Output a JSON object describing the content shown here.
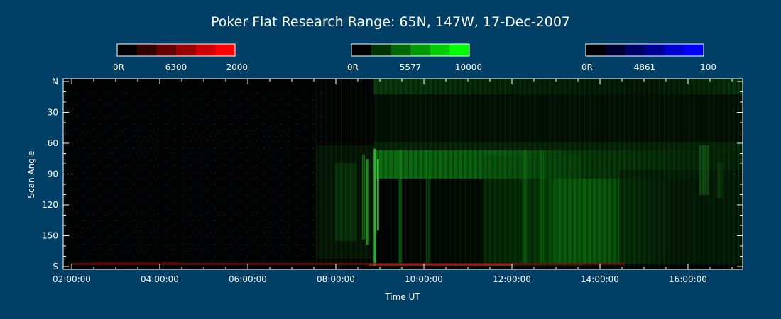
{
  "chart_data": {
    "type": "heatmap",
    "title": "Poker Flat Research Range: 65N, 147W, 17-Dec-2007",
    "xlabel": "Time UT",
    "ylabel": "Scan Angle",
    "x_ticks": [
      "02:00:00",
      "04:00:00",
      "06:00:00",
      "08:00:00",
      "10:00:00",
      "12:00:00",
      "14:00:00",
      "16:00:00"
    ],
    "y_ticks": [
      "N",
      "30",
      "60",
      "90",
      "120",
      "150",
      "S"
    ],
    "y_tick_values": [
      0,
      30,
      60,
      90,
      120,
      150,
      180
    ],
    "colorbars": [
      {
        "name": "6300",
        "min_label": "0R",
        "mid_label": "6300",
        "max_label": "2000",
        "colors": [
          "#000000",
          "#330000",
          "#660000",
          "#990000",
          "#cc0000",
          "#ff0000"
        ]
      },
      {
        "name": "5577",
        "min_label": "0R",
        "mid_label": "5577",
        "max_label": "10000",
        "colors": [
          "#000000",
          "#003300",
          "#006600",
          "#009900",
          "#00cc00",
          "#00ff00"
        ]
      },
      {
        "name": "4861",
        "min_label": "0R",
        "mid_label": "4861",
        "max_label": "100",
        "colors": [
          "#000000",
          "#000033",
          "#000066",
          "#000099",
          "#0000cc",
          "#0000ff"
        ]
      }
    ],
    "background_color": "#003f66",
    "plot_background": "#020403"
  }
}
